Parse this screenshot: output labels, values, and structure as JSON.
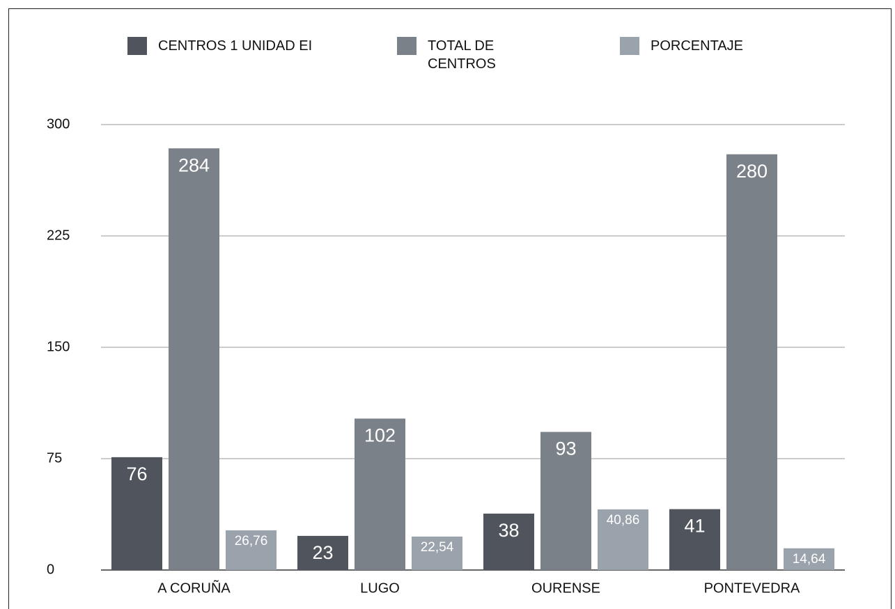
{
  "chart_data": {
    "type": "bar",
    "categories": [
      "A CORUÑA",
      "LUGO",
      "OURENSE",
      "PONTEVEDRA"
    ],
    "series": [
      {
        "name": "CENTROS 1 UNIDAD EI",
        "color": "#50555d",
        "values": [
          76,
          23,
          38,
          41
        ]
      },
      {
        "name": "TOTAL DE CENTROS",
        "color": "#7b8189",
        "values": [
          284,
          102,
          93,
          280
        ]
      },
      {
        "name": "PORCENTAJE",
        "color": "#9aa2ab",
        "values": [
          26.76,
          22.54,
          40.86,
          14.64
        ],
        "value_labels": [
          "26,76",
          "22,54",
          "40,86",
          "14,64"
        ]
      }
    ],
    "ylim": [
      0,
      300
    ],
    "yticks": [
      0,
      75,
      150,
      225,
      300
    ],
    "grid": true,
    "legend": "top"
  }
}
